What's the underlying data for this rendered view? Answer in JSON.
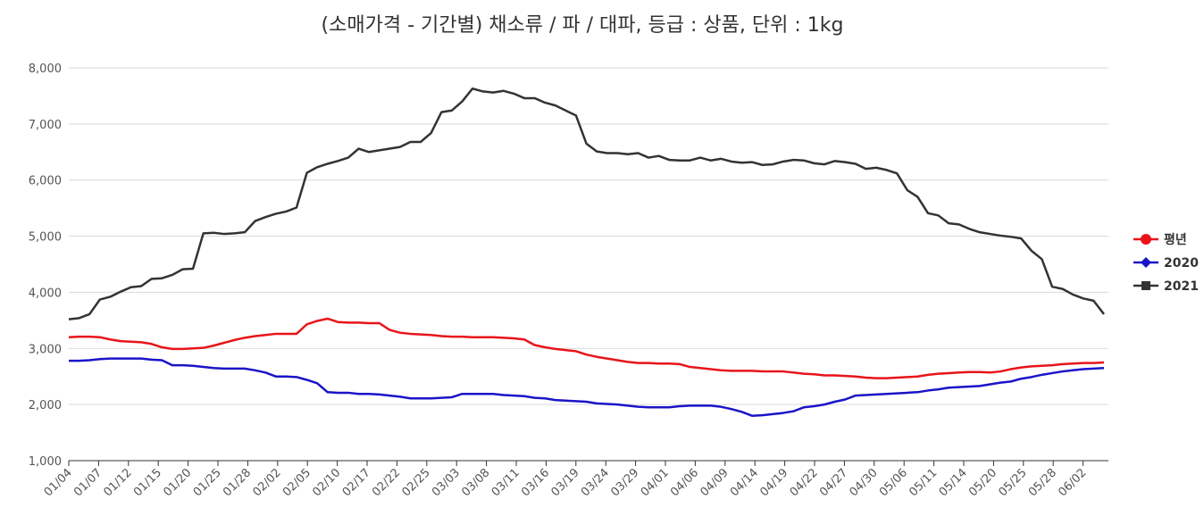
{
  "chart_data": {
    "type": "line",
    "title": "(소매가격 - 기간별) 채소류 / 파 / 대파, 등급 : 상품, 단위 : 1kg",
    "ylim": [
      1000,
      8000
    ],
    "yticks": [
      "1,000",
      "2,000",
      "3,000",
      "4,000",
      "5,000",
      "6,000",
      "7,000",
      "8,000"
    ],
    "ytick_values": [
      1000,
      2000,
      3000,
      4000,
      5000,
      6000,
      7000,
      8000
    ],
    "grid": true,
    "legend_position": "right",
    "x_labels": [
      "01/04",
      "01/07",
      "01/12",
      "01/15",
      "01/20",
      "01/25",
      "01/28",
      "02/02",
      "02/05",
      "02/10",
      "02/17",
      "02/22",
      "02/25",
      "03/03",
      "03/08",
      "03/11",
      "03/16",
      "03/19",
      "03/24",
      "03/29",
      "04/01",
      "04/06",
      "04/09",
      "04/14",
      "04/19",
      "04/22",
      "04/27",
      "04/30",
      "05/06",
      "05/11",
      "05/14",
      "05/20",
      "05/25",
      "05/28",
      "06/02"
    ],
    "series": [
      {
        "name": "평년",
        "color": "#e8141a",
        "marker": "circle",
        "values": [
          3200,
          3210,
          3210,
          3200,
          3160,
          3130,
          3120,
          3110,
          3080,
          3020,
          2990,
          2990,
          3000,
          3010,
          3050,
          3100,
          3150,
          3190,
          3220,
          3240,
          3260,
          3260,
          3260,
          3430,
          3490,
          3530,
          3470,
          3460,
          3460,
          3450,
          3450,
          3330,
          3280,
          3260,
          3250,
          3240,
          3220,
          3210,
          3210,
          3200,
          3200,
          3200,
          3190,
          3180,
          3160,
          3060,
          3020,
          2990,
          2970,
          2950,
          2890,
          2850,
          2820,
          2790,
          2760,
          2740,
          2740,
          2730,
          2730,
          2720,
          2670,
          2650,
          2630,
          2610,
          2600,
          2600,
          2600,
          2590,
          2590,
          2590,
          2570,
          2550,
          2540,
          2520,
          2520,
          2510,
          2500,
          2480,
          2470,
          2470,
          2480,
          2490,
          2500,
          2530,
          2550,
          2560,
          2570,
          2580,
          2580,
          2570,
          2590,
          2630,
          2660,
          2680,
          2690,
          2700,
          2720,
          2730,
          2740,
          2740,
          2750
        ]
      },
      {
        "name": "2020",
        "color": "#1a14c8",
        "marker": "diamond",
        "values": [
          2780,
          2780,
          2790,
          2810,
          2820,
          2820,
          2820,
          2820,
          2800,
          2790,
          2700,
          2700,
          2690,
          2670,
          2650,
          2640,
          2640,
          2640,
          2610,
          2570,
          2500,
          2500,
          2490,
          2440,
          2380,
          2220,
          2210,
          2210,
          2190,
          2190,
          2180,
          2160,
          2140,
          2110,
          2110,
          2110,
          2120,
          2130,
          2190,
          2190,
          2190,
          2190,
          2170,
          2160,
          2150,
          2120,
          2110,
          2080,
          2070,
          2060,
          2050,
          2020,
          2010,
          2000,
          1980,
          1960,
          1950,
          1950,
          1950,
          1970,
          1980,
          1980,
          1980,
          1960,
          1920,
          1870,
          1800,
          1810,
          1830,
          1850,
          1880,
          1950,
          1970,
          2000,
          2050,
          2090,
          2160,
          2170,
          2180,
          2190,
          2200,
          2210,
          2220,
          2250,
          2270,
          2300,
          2310,
          2320,
          2330,
          2360,
          2390,
          2410,
          2460,
          2490,
          2530,
          2560,
          2590,
          2610,
          2630,
          2640,
          2650
        ]
      },
      {
        "name": "2021",
        "color": "#333333",
        "marker": "square",
        "values": [
          3520,
          3540,
          3610,
          3870,
          3920,
          4010,
          4090,
          4110,
          4240,
          4250,
          4310,
          4410,
          4420,
          5050,
          5060,
          5040,
          5050,
          5070,
          5270,
          5340,
          5400,
          5440,
          5510,
          6130,
          6230,
          6290,
          6340,
          6400,
          6560,
          6500,
          6530,
          6560,
          6590,
          6680,
          6680,
          6840,
          7210,
          7240,
          7400,
          7630,
          7580,
          7560,
          7590,
          7540,
          7460,
          7460,
          7380,
          7330,
          7240,
          7150,
          6650,
          6510,
          6480,
          6480,
          6460,
          6480,
          6400,
          6430,
          6360,
          6350,
          6350,
          6400,
          6350,
          6380,
          6330,
          6310,
          6320,
          6270,
          6280,
          6330,
          6360,
          6350,
          6300,
          6280,
          6340,
          6320,
          6290,
          6200,
          6220,
          6180,
          6120,
          5820,
          5700,
          5410,
          5370,
          5230,
          5210,
          5130,
          5070,
          5040,
          5010,
          4990,
          4960,
          4740,
          4590,
          4100,
          4060,
          3960,
          3890,
          3850,
          3610
        ]
      }
    ]
  }
}
